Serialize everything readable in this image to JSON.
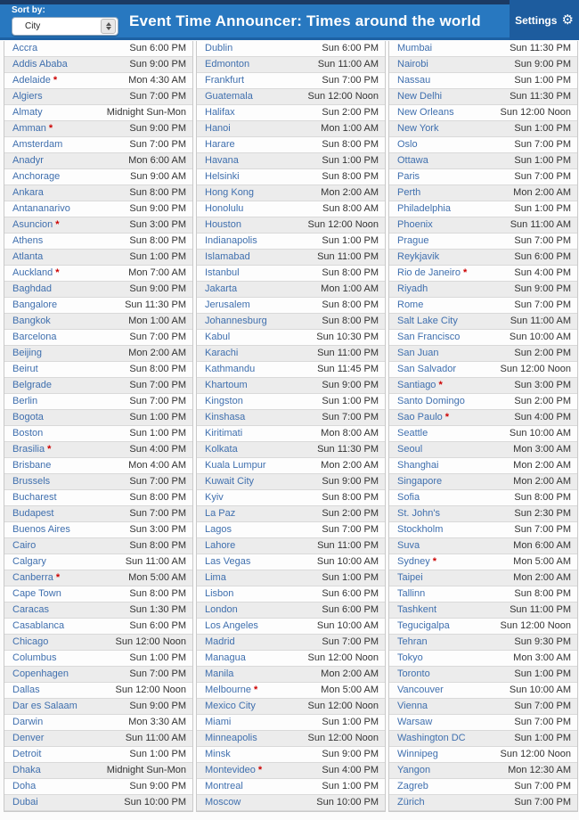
{
  "header": {
    "sort_by_label": "Sort by:",
    "sort_value": "City",
    "title": "Event Time Announcer: Times around the world",
    "settings_label": "Settings",
    "settings_icon": "gear-icon"
  },
  "colors": {
    "top_strip": "#1b3a64",
    "header_bg": "#2878c0",
    "settings_bg": "#1d5c9e",
    "city_link": "#3f6fae",
    "time_text": "#333333",
    "asterisk": "#cc0000",
    "row_alt_bg": "#ececec"
  },
  "dst_marker": "*",
  "columns": [
    {
      "rows": [
        {
          "city": "Accra",
          "time": "Sun 6:00 PM",
          "dst": false
        },
        {
          "city": "Addis Ababa",
          "time": "Sun 9:00 PM",
          "dst": false
        },
        {
          "city": "Adelaide",
          "time": "Mon 4:30 AM",
          "dst": true
        },
        {
          "city": "Algiers",
          "time": "Sun 7:00 PM",
          "dst": false
        },
        {
          "city": "Almaty",
          "time": "Midnight Sun-Mon",
          "dst": false
        },
        {
          "city": "Amman",
          "time": "Sun 9:00 PM",
          "dst": true
        },
        {
          "city": "Amsterdam",
          "time": "Sun 7:00 PM",
          "dst": false
        },
        {
          "city": "Anadyr",
          "time": "Mon 6:00 AM",
          "dst": false
        },
        {
          "city": "Anchorage",
          "time": "Sun 9:00 AM",
          "dst": false
        },
        {
          "city": "Ankara",
          "time": "Sun 8:00 PM",
          "dst": false
        },
        {
          "city": "Antananarivo",
          "time": "Sun 9:00 PM",
          "dst": false
        },
        {
          "city": "Asuncion",
          "time": "Sun 3:00 PM",
          "dst": true
        },
        {
          "city": "Athens",
          "time": "Sun 8:00 PM",
          "dst": false
        },
        {
          "city": "Atlanta",
          "time": "Sun 1:00 PM",
          "dst": false
        },
        {
          "city": "Auckland",
          "time": "Mon 7:00 AM",
          "dst": true
        },
        {
          "city": "Baghdad",
          "time": "Sun 9:00 PM",
          "dst": false
        },
        {
          "city": "Bangalore",
          "time": "Sun 11:30 PM",
          "dst": false
        },
        {
          "city": "Bangkok",
          "time": "Mon 1:00 AM",
          "dst": false
        },
        {
          "city": "Barcelona",
          "time": "Sun 7:00 PM",
          "dst": false
        },
        {
          "city": "Beijing",
          "time": "Mon 2:00 AM",
          "dst": false
        },
        {
          "city": "Beirut",
          "time": "Sun 8:00 PM",
          "dst": false
        },
        {
          "city": "Belgrade",
          "time": "Sun 7:00 PM",
          "dst": false
        },
        {
          "city": "Berlin",
          "time": "Sun 7:00 PM",
          "dst": false
        },
        {
          "city": "Bogota",
          "time": "Sun 1:00 PM",
          "dst": false
        },
        {
          "city": "Boston",
          "time": "Sun 1:00 PM",
          "dst": false
        },
        {
          "city": "Brasilia",
          "time": "Sun 4:00 PM",
          "dst": true
        },
        {
          "city": "Brisbane",
          "time": "Mon 4:00 AM",
          "dst": false
        },
        {
          "city": "Brussels",
          "time": "Sun 7:00 PM",
          "dst": false
        },
        {
          "city": "Bucharest",
          "time": "Sun 8:00 PM",
          "dst": false
        },
        {
          "city": "Budapest",
          "time": "Sun 7:00 PM",
          "dst": false
        },
        {
          "city": "Buenos Aires",
          "time": "Sun 3:00 PM",
          "dst": false
        },
        {
          "city": "Cairo",
          "time": "Sun 8:00 PM",
          "dst": false
        },
        {
          "city": "Calgary",
          "time": "Sun 11:00 AM",
          "dst": false
        },
        {
          "city": "Canberra",
          "time": "Mon 5:00 AM",
          "dst": true
        },
        {
          "city": "Cape Town",
          "time": "Sun 8:00 PM",
          "dst": false
        },
        {
          "city": "Caracas",
          "time": "Sun 1:30 PM",
          "dst": false
        },
        {
          "city": "Casablanca",
          "time": "Sun 6:00 PM",
          "dst": false
        },
        {
          "city": "Chicago",
          "time": "Sun 12:00 Noon",
          "dst": false
        },
        {
          "city": "Columbus",
          "time": "Sun 1:00 PM",
          "dst": false
        },
        {
          "city": "Copenhagen",
          "time": "Sun 7:00 PM",
          "dst": false
        },
        {
          "city": "Dallas",
          "time": "Sun 12:00 Noon",
          "dst": false
        },
        {
          "city": "Dar es Salaam",
          "time": "Sun 9:00 PM",
          "dst": false
        },
        {
          "city": "Darwin",
          "time": "Mon 3:30 AM",
          "dst": false
        },
        {
          "city": "Denver",
          "time": "Sun 11:00 AM",
          "dst": false
        },
        {
          "city": "Detroit",
          "time": "Sun 1:00 PM",
          "dst": false
        },
        {
          "city": "Dhaka",
          "time": "Midnight Sun-Mon",
          "dst": false
        },
        {
          "city": "Doha",
          "time": "Sun 9:00 PM",
          "dst": false
        },
        {
          "city": "Dubai",
          "time": "Sun 10:00 PM",
          "dst": false
        }
      ]
    },
    {
      "rows": [
        {
          "city": "Dublin",
          "time": "Sun 6:00 PM",
          "dst": false
        },
        {
          "city": "Edmonton",
          "time": "Sun 11:00 AM",
          "dst": false
        },
        {
          "city": "Frankfurt",
          "time": "Sun 7:00 PM",
          "dst": false
        },
        {
          "city": "Guatemala",
          "time": "Sun 12:00 Noon",
          "dst": false
        },
        {
          "city": "Halifax",
          "time": "Sun 2:00 PM",
          "dst": false
        },
        {
          "city": "Hanoi",
          "time": "Mon 1:00 AM",
          "dst": false
        },
        {
          "city": "Harare",
          "time": "Sun 8:00 PM",
          "dst": false
        },
        {
          "city": "Havana",
          "time": "Sun 1:00 PM",
          "dst": false
        },
        {
          "city": "Helsinki",
          "time": "Sun 8:00 PM",
          "dst": false
        },
        {
          "city": "Hong Kong",
          "time": "Mon 2:00 AM",
          "dst": false
        },
        {
          "city": "Honolulu",
          "time": "Sun 8:00 AM",
          "dst": false
        },
        {
          "city": "Houston",
          "time": "Sun 12:00 Noon",
          "dst": false
        },
        {
          "city": "Indianapolis",
          "time": "Sun 1:00 PM",
          "dst": false
        },
        {
          "city": "Islamabad",
          "time": "Sun 11:00 PM",
          "dst": false
        },
        {
          "city": "Istanbul",
          "time": "Sun 8:00 PM",
          "dst": false
        },
        {
          "city": "Jakarta",
          "time": "Mon 1:00 AM",
          "dst": false
        },
        {
          "city": "Jerusalem",
          "time": "Sun 8:00 PM",
          "dst": false
        },
        {
          "city": "Johannesburg",
          "time": "Sun 8:00 PM",
          "dst": false
        },
        {
          "city": "Kabul",
          "time": "Sun 10:30 PM",
          "dst": false
        },
        {
          "city": "Karachi",
          "time": "Sun 11:00 PM",
          "dst": false
        },
        {
          "city": "Kathmandu",
          "time": "Sun 11:45 PM",
          "dst": false
        },
        {
          "city": "Khartoum",
          "time": "Sun 9:00 PM",
          "dst": false
        },
        {
          "city": "Kingston",
          "time": "Sun 1:00 PM",
          "dst": false
        },
        {
          "city": "Kinshasa",
          "time": "Sun 7:00 PM",
          "dst": false
        },
        {
          "city": "Kiritimati",
          "time": "Mon 8:00 AM",
          "dst": false
        },
        {
          "city": "Kolkata",
          "time": "Sun 11:30 PM",
          "dst": false
        },
        {
          "city": "Kuala Lumpur",
          "time": "Mon 2:00 AM",
          "dst": false
        },
        {
          "city": "Kuwait City",
          "time": "Sun 9:00 PM",
          "dst": false
        },
        {
          "city": "Kyiv",
          "time": "Sun 8:00 PM",
          "dst": false
        },
        {
          "city": "La Paz",
          "time": "Sun 2:00 PM",
          "dst": false
        },
        {
          "city": "Lagos",
          "time": "Sun 7:00 PM",
          "dst": false
        },
        {
          "city": "Lahore",
          "time": "Sun 11:00 PM",
          "dst": false
        },
        {
          "city": "Las Vegas",
          "time": "Sun 10:00 AM",
          "dst": false
        },
        {
          "city": "Lima",
          "time": "Sun 1:00 PM",
          "dst": false
        },
        {
          "city": "Lisbon",
          "time": "Sun 6:00 PM",
          "dst": false
        },
        {
          "city": "London",
          "time": "Sun 6:00 PM",
          "dst": false
        },
        {
          "city": "Los Angeles",
          "time": "Sun 10:00 AM",
          "dst": false
        },
        {
          "city": "Madrid",
          "time": "Sun 7:00 PM",
          "dst": false
        },
        {
          "city": "Managua",
          "time": "Sun 12:00 Noon",
          "dst": false
        },
        {
          "city": "Manila",
          "time": "Mon 2:00 AM",
          "dst": false
        },
        {
          "city": "Melbourne",
          "time": "Mon 5:00 AM",
          "dst": true
        },
        {
          "city": "Mexico City",
          "time": "Sun 12:00 Noon",
          "dst": false
        },
        {
          "city": "Miami",
          "time": "Sun 1:00 PM",
          "dst": false
        },
        {
          "city": "Minneapolis",
          "time": "Sun 12:00 Noon",
          "dst": false
        },
        {
          "city": "Minsk",
          "time": "Sun 9:00 PM",
          "dst": false
        },
        {
          "city": "Montevideo",
          "time": "Sun 4:00 PM",
          "dst": true
        },
        {
          "city": "Montreal",
          "time": "Sun 1:00 PM",
          "dst": false
        },
        {
          "city": "Moscow",
          "time": "Sun 10:00 PM",
          "dst": false
        }
      ]
    },
    {
      "rows": [
        {
          "city": "Mumbai",
          "time": "Sun 11:30 PM",
          "dst": false
        },
        {
          "city": "Nairobi",
          "time": "Sun 9:00 PM",
          "dst": false
        },
        {
          "city": "Nassau",
          "time": "Sun 1:00 PM",
          "dst": false
        },
        {
          "city": "New Delhi",
          "time": "Sun 11:30 PM",
          "dst": false
        },
        {
          "city": "New Orleans",
          "time": "Sun 12:00 Noon",
          "dst": false
        },
        {
          "city": "New York",
          "time": "Sun 1:00 PM",
          "dst": false
        },
        {
          "city": "Oslo",
          "time": "Sun 7:00 PM",
          "dst": false
        },
        {
          "city": "Ottawa",
          "time": "Sun 1:00 PM",
          "dst": false
        },
        {
          "city": "Paris",
          "time": "Sun 7:00 PM",
          "dst": false
        },
        {
          "city": "Perth",
          "time": "Mon 2:00 AM",
          "dst": false
        },
        {
          "city": "Philadelphia",
          "time": "Sun 1:00 PM",
          "dst": false
        },
        {
          "city": "Phoenix",
          "time": "Sun 11:00 AM",
          "dst": false
        },
        {
          "city": "Prague",
          "time": "Sun 7:00 PM",
          "dst": false
        },
        {
          "city": "Reykjavik",
          "time": "Sun 6:00 PM",
          "dst": false
        },
        {
          "city": "Rio de Janeiro",
          "time": "Sun 4:00 PM",
          "dst": true
        },
        {
          "city": "Riyadh",
          "time": "Sun 9:00 PM",
          "dst": false
        },
        {
          "city": "Rome",
          "time": "Sun 7:00 PM",
          "dst": false
        },
        {
          "city": "Salt Lake City",
          "time": "Sun 11:00 AM",
          "dst": false
        },
        {
          "city": "San Francisco",
          "time": "Sun 10:00 AM",
          "dst": false
        },
        {
          "city": "San Juan",
          "time": "Sun 2:00 PM",
          "dst": false
        },
        {
          "city": "San Salvador",
          "time": "Sun 12:00 Noon",
          "dst": false
        },
        {
          "city": "Santiago",
          "time": "Sun 3:00 PM",
          "dst": true
        },
        {
          "city": "Santo Domingo",
          "time": "Sun 2:00 PM",
          "dst": false
        },
        {
          "city": "Sao Paulo",
          "time": "Sun 4:00 PM",
          "dst": true
        },
        {
          "city": "Seattle",
          "time": "Sun 10:00 AM",
          "dst": false
        },
        {
          "city": "Seoul",
          "time": "Mon 3:00 AM",
          "dst": false
        },
        {
          "city": "Shanghai",
          "time": "Mon 2:00 AM",
          "dst": false
        },
        {
          "city": "Singapore",
          "time": "Mon 2:00 AM",
          "dst": false
        },
        {
          "city": "Sofia",
          "time": "Sun 8:00 PM",
          "dst": false
        },
        {
          "city": "St. John's",
          "time": "Sun 2:30 PM",
          "dst": false
        },
        {
          "city": "Stockholm",
          "time": "Sun 7:00 PM",
          "dst": false
        },
        {
          "city": "Suva",
          "time": "Mon 6:00 AM",
          "dst": false
        },
        {
          "city": "Sydney",
          "time": "Mon 5:00 AM",
          "dst": true
        },
        {
          "city": "Taipei",
          "time": "Mon 2:00 AM",
          "dst": false
        },
        {
          "city": "Tallinn",
          "time": "Sun 8:00 PM",
          "dst": false
        },
        {
          "city": "Tashkent",
          "time": "Sun 11:00 PM",
          "dst": false
        },
        {
          "city": "Tegucigalpa",
          "time": "Sun 12:00 Noon",
          "dst": false
        },
        {
          "city": "Tehran",
          "time": "Sun 9:30 PM",
          "dst": false
        },
        {
          "city": "Tokyo",
          "time": "Mon 3:00 AM",
          "dst": false
        },
        {
          "city": "Toronto",
          "time": "Sun 1:00 PM",
          "dst": false
        },
        {
          "city": "Vancouver",
          "time": "Sun 10:00 AM",
          "dst": false
        },
        {
          "city": "Vienna",
          "time": "Sun 7:00 PM",
          "dst": false
        },
        {
          "city": "Warsaw",
          "time": "Sun 7:00 PM",
          "dst": false
        },
        {
          "city": "Washington DC",
          "time": "Sun 1:00 PM",
          "dst": false
        },
        {
          "city": "Winnipeg",
          "time": "Sun 12:00 Noon",
          "dst": false
        },
        {
          "city": "Yangon",
          "time": "Mon 12:30 AM",
          "dst": false
        },
        {
          "city": "Zagreb",
          "time": "Sun 7:00 PM",
          "dst": false
        },
        {
          "city": "Zürich",
          "time": "Sun 7:00 PM",
          "dst": false
        }
      ]
    }
  ]
}
